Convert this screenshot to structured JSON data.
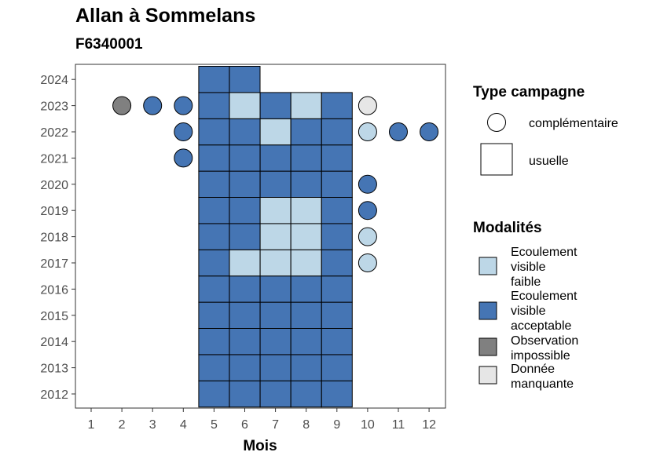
{
  "chart_data": {
    "type": "heatmap",
    "title": "Allan à Sommelans",
    "subtitle": "F6340001",
    "xlabel": "Mois",
    "ylabel": "",
    "x_categories": [
      "1",
      "2",
      "3",
      "4",
      "5",
      "6",
      "7",
      "8",
      "9",
      "10",
      "11",
      "12"
    ],
    "y_categories": [
      "2012",
      "2013",
      "2014",
      "2015",
      "2016",
      "2017",
      "2018",
      "2019",
      "2020",
      "2021",
      "2022",
      "2023",
      "2024"
    ],
    "grid": false,
    "legend_position": "right",
    "colors": {
      "faible": "#bdd7e7",
      "acceptable": "#4575b4",
      "impossible": "#808080",
      "manquante": "#e6e6e6"
    },
    "legend": {
      "type_campagne": {
        "title": "Type campagne",
        "items": [
          {
            "shape": "circle",
            "label": "complémentaire"
          },
          {
            "shape": "square",
            "label": "usuelle"
          }
        ]
      },
      "modalites": {
        "title": "Modalités",
        "items": [
          {
            "key": "faible",
            "lines": [
              "Ecoulement",
              "visible",
              "faible"
            ]
          },
          {
            "key": "acceptable",
            "lines": [
              "Ecoulement",
              "visible",
              "acceptable"
            ]
          },
          {
            "key": "impossible",
            "lines": [
              "Observation",
              "impossible"
            ]
          },
          {
            "key": "manquante",
            "lines": [
              "Donnée",
              "manquante"
            ]
          }
        ]
      }
    },
    "points": [
      {
        "year": 2012,
        "month": 5,
        "shape": "square",
        "mod": "acceptable"
      },
      {
        "year": 2012,
        "month": 6,
        "shape": "square",
        "mod": "acceptable"
      },
      {
        "year": 2012,
        "month": 7,
        "shape": "square",
        "mod": "acceptable"
      },
      {
        "year": 2012,
        "month": 8,
        "shape": "square",
        "mod": "acceptable"
      },
      {
        "year": 2012,
        "month": 9,
        "shape": "square",
        "mod": "acceptable"
      },
      {
        "year": 2013,
        "month": 5,
        "shape": "square",
        "mod": "acceptable"
      },
      {
        "year": 2013,
        "month": 6,
        "shape": "square",
        "mod": "acceptable"
      },
      {
        "year": 2013,
        "month": 7,
        "shape": "square",
        "mod": "acceptable"
      },
      {
        "year": 2013,
        "month": 8,
        "shape": "square",
        "mod": "acceptable"
      },
      {
        "year": 2013,
        "month": 9,
        "shape": "square",
        "mod": "acceptable"
      },
      {
        "year": 2014,
        "month": 5,
        "shape": "square",
        "mod": "acceptable"
      },
      {
        "year": 2014,
        "month": 6,
        "shape": "square",
        "mod": "acceptable"
      },
      {
        "year": 2014,
        "month": 7,
        "shape": "square",
        "mod": "acceptable"
      },
      {
        "year": 2014,
        "month": 8,
        "shape": "square",
        "mod": "acceptable"
      },
      {
        "year": 2014,
        "month": 9,
        "shape": "square",
        "mod": "acceptable"
      },
      {
        "year": 2015,
        "month": 5,
        "shape": "square",
        "mod": "acceptable"
      },
      {
        "year": 2015,
        "month": 6,
        "shape": "square",
        "mod": "acceptable"
      },
      {
        "year": 2015,
        "month": 7,
        "shape": "square",
        "mod": "acceptable"
      },
      {
        "year": 2015,
        "month": 8,
        "shape": "square",
        "mod": "acceptable"
      },
      {
        "year": 2015,
        "month": 9,
        "shape": "square",
        "mod": "acceptable"
      },
      {
        "year": 2016,
        "month": 5,
        "shape": "square",
        "mod": "acceptable"
      },
      {
        "year": 2016,
        "month": 6,
        "shape": "square",
        "mod": "acceptable"
      },
      {
        "year": 2016,
        "month": 7,
        "shape": "square",
        "mod": "acceptable"
      },
      {
        "year": 2016,
        "month": 8,
        "shape": "square",
        "mod": "acceptable"
      },
      {
        "year": 2016,
        "month": 9,
        "shape": "square",
        "mod": "acceptable"
      },
      {
        "year": 2017,
        "month": 5,
        "shape": "square",
        "mod": "acceptable"
      },
      {
        "year": 2017,
        "month": 6,
        "shape": "square",
        "mod": "faible"
      },
      {
        "year": 2017,
        "month": 7,
        "shape": "square",
        "mod": "faible"
      },
      {
        "year": 2017,
        "month": 8,
        "shape": "square",
        "mod": "faible"
      },
      {
        "year": 2017,
        "month": 9,
        "shape": "square",
        "mod": "acceptable"
      },
      {
        "year": 2017,
        "month": 10,
        "shape": "circle",
        "mod": "faible"
      },
      {
        "year": 2018,
        "month": 5,
        "shape": "square",
        "mod": "acceptable"
      },
      {
        "year": 2018,
        "month": 6,
        "shape": "square",
        "mod": "acceptable"
      },
      {
        "year": 2018,
        "month": 7,
        "shape": "square",
        "mod": "faible"
      },
      {
        "year": 2018,
        "month": 8,
        "shape": "square",
        "mod": "faible"
      },
      {
        "year": 2018,
        "month": 9,
        "shape": "square",
        "mod": "acceptable"
      },
      {
        "year": 2018,
        "month": 10,
        "shape": "circle",
        "mod": "faible"
      },
      {
        "year": 2019,
        "month": 5,
        "shape": "square",
        "mod": "acceptable"
      },
      {
        "year": 2019,
        "month": 6,
        "shape": "square",
        "mod": "acceptable"
      },
      {
        "year": 2019,
        "month": 7,
        "shape": "square",
        "mod": "faible"
      },
      {
        "year": 2019,
        "month": 8,
        "shape": "square",
        "mod": "faible"
      },
      {
        "year": 2019,
        "month": 9,
        "shape": "square",
        "mod": "acceptable"
      },
      {
        "year": 2019,
        "month": 10,
        "shape": "circle",
        "mod": "acceptable"
      },
      {
        "year": 2020,
        "month": 5,
        "shape": "square",
        "mod": "acceptable"
      },
      {
        "year": 2020,
        "month": 6,
        "shape": "square",
        "mod": "acceptable"
      },
      {
        "year": 2020,
        "month": 7,
        "shape": "square",
        "mod": "acceptable"
      },
      {
        "year": 2020,
        "month": 8,
        "shape": "square",
        "mod": "acceptable"
      },
      {
        "year": 2020,
        "month": 9,
        "shape": "square",
        "mod": "acceptable"
      },
      {
        "year": 2020,
        "month": 10,
        "shape": "circle",
        "mod": "acceptable"
      },
      {
        "year": 2021,
        "month": 4,
        "shape": "circle",
        "mod": "acceptable"
      },
      {
        "year": 2021,
        "month": 5,
        "shape": "square",
        "mod": "acceptable"
      },
      {
        "year": 2021,
        "month": 6,
        "shape": "square",
        "mod": "acceptable"
      },
      {
        "year": 2021,
        "month": 7,
        "shape": "square",
        "mod": "acceptable"
      },
      {
        "year": 2021,
        "month": 8,
        "shape": "square",
        "mod": "acceptable"
      },
      {
        "year": 2021,
        "month": 9,
        "shape": "square",
        "mod": "acceptable"
      },
      {
        "year": 2022,
        "month": 4,
        "shape": "circle",
        "mod": "acceptable"
      },
      {
        "year": 2022,
        "month": 5,
        "shape": "square",
        "mod": "acceptable"
      },
      {
        "year": 2022,
        "month": 6,
        "shape": "square",
        "mod": "acceptable"
      },
      {
        "year": 2022,
        "month": 7,
        "shape": "square",
        "mod": "faible"
      },
      {
        "year": 2022,
        "month": 8,
        "shape": "square",
        "mod": "acceptable"
      },
      {
        "year": 2022,
        "month": 9,
        "shape": "square",
        "mod": "acceptable"
      },
      {
        "year": 2022,
        "month": 10,
        "shape": "circle",
        "mod": "faible"
      },
      {
        "year": 2022,
        "month": 11,
        "shape": "circle",
        "mod": "acceptable"
      },
      {
        "year": 2022,
        "month": 12,
        "shape": "circle",
        "mod": "acceptable"
      },
      {
        "year": 2023,
        "month": 2,
        "shape": "circle",
        "mod": "impossible"
      },
      {
        "year": 2023,
        "month": 3,
        "shape": "circle",
        "mod": "acceptable"
      },
      {
        "year": 2023,
        "month": 4,
        "shape": "circle",
        "mod": "acceptable"
      },
      {
        "year": 2023,
        "month": 5,
        "shape": "square",
        "mod": "acceptable"
      },
      {
        "year": 2023,
        "month": 6,
        "shape": "square",
        "mod": "faible"
      },
      {
        "year": 2023,
        "month": 7,
        "shape": "square",
        "mod": "acceptable"
      },
      {
        "year": 2023,
        "month": 8,
        "shape": "square",
        "mod": "faible"
      },
      {
        "year": 2023,
        "month": 9,
        "shape": "square",
        "mod": "acceptable"
      },
      {
        "year": 2023,
        "month": 10,
        "shape": "circle",
        "mod": "manquante"
      },
      {
        "year": 2024,
        "month": 5,
        "shape": "square",
        "mod": "acceptable"
      },
      {
        "year": 2024,
        "month": 6,
        "shape": "square",
        "mod": "acceptable"
      }
    ]
  }
}
